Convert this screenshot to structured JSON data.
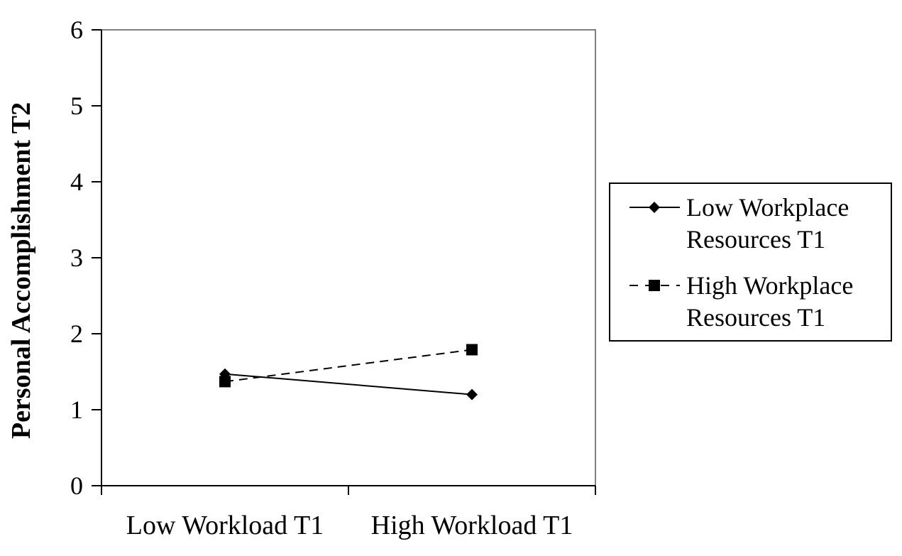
{
  "chart_data": {
    "type": "line",
    "categories": [
      "Low Workload T1",
      "High Workload T1"
    ],
    "ylabel": "Personal Accomplishment  T2",
    "xlabel": "",
    "ylim": [
      0,
      6
    ],
    "yticks": [
      0,
      1,
      2,
      3,
      4,
      5,
      6
    ],
    "grid": false,
    "legend_position": "right",
    "series": [
      {
        "name_lines": [
          "Low Workplace",
          "Resources T1"
        ],
        "values": [
          1.47,
          1.2
        ],
        "line": "solid",
        "marker": "diamond",
        "color": "#000000"
      },
      {
        "name_lines": [
          "High Workplace",
          "Resources T1"
        ],
        "values": [
          1.37,
          1.79
        ],
        "line": "dashed",
        "marker": "square",
        "color": "#000000"
      }
    ]
  }
}
